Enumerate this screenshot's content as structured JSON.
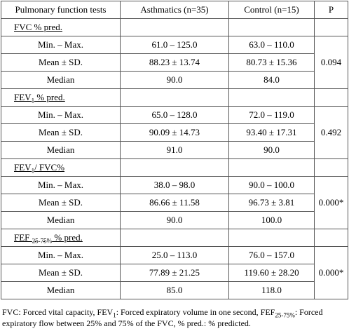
{
  "header": {
    "col1": "Pulmonary function tests",
    "col2": "Asthmatics (n=35)",
    "col3": "Control (n=15)",
    "col4": "P"
  },
  "row_labels": {
    "range": "Min. – Max.",
    "mean": "Mean ± SD.",
    "median": "Median"
  },
  "sections": [
    {
      "title": "FVC % pred.",
      "range_a": "61.0 – 125.0",
      "range_c": "63.0 – 110.0",
      "mean_a": "88.23 ± 13.74",
      "mean_c": "80.73 ± 15.36",
      "median_a": "90.0",
      "median_c": "84.0",
      "p": "0.094"
    },
    {
      "title_pre": "FEV",
      "title_sub": "1",
      "title_post": " % pred.",
      "range_a": "65.0 – 128.0",
      "range_c": "72.0 – 119.0",
      "mean_a": "90.09 ± 14.73",
      "mean_c": "93.40 ± 17.31",
      "median_a": "91.0",
      "median_c": "90.0",
      "p": "0.492"
    },
    {
      "title_pre": "FEV",
      "title_sub": "1",
      "title_post": "/ FVC%",
      "range_a": "38.0 – 98.0",
      "range_c": "90.0 – 100.0",
      "mean_a": "86.66 ± 11.58",
      "mean_c": "96.73 ± 3.81",
      "median_a": "90.0",
      "median_c": "100.0",
      "p": "0.000*"
    },
    {
      "title_pre": "FEF ",
      "title_sub": "25-75%",
      "title_post": " % pred.",
      "range_a": "25.0 – 113.0",
      "range_c": "76.0 – 157.0",
      "mean_a": "77.89 ± 21.25",
      "mean_c": "119.60 ± 28.20",
      "median_a": "85.0",
      "median_c": "118.0",
      "p": "0.000*"
    }
  ],
  "footnote": {
    "p1": "FVC: Forced vital capacity, FEV",
    "s1": "1",
    "p2": ": Forced expiratory volume in one second, FEF",
    "s2": "25-75%",
    "p3": ": Forced expiratory flow between 25% and 75% of the FVC, % pred.: % predicted."
  }
}
